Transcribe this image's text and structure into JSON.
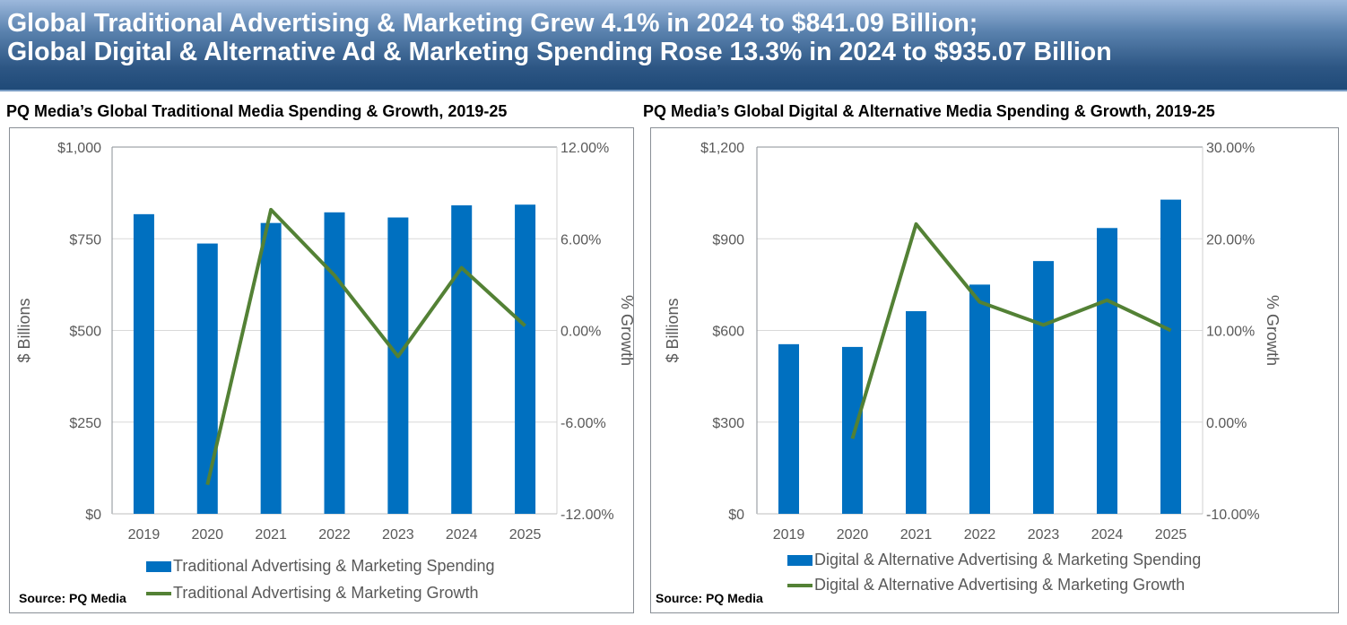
{
  "header": {
    "line1": "Global Traditional Advertising & Marketing Grew 4.1% in 2024 to $841.09 Billion;",
    "line2": "Global Digital & Alternative Ad & Marketing Spending Rose 13.3% in 2024 to $935.07 Billion"
  },
  "colors": {
    "bar": "#0070c0",
    "line": "#538135",
    "header": "#2d5684"
  },
  "chart_data": [
    {
      "type": "bar+line",
      "title": "PQ Media’s Global Traditional Media Spending & Growth, 2019-25",
      "categories": [
        "2019",
        "2020",
        "2021",
        "2022",
        "2023",
        "2024",
        "2025"
      ],
      "ylabel": "$ Billions",
      "y2label": "% Growth",
      "ylim": [
        0,
        1000
      ],
      "y2lim": [
        -12,
        12
      ],
      "yticks": [
        "$0",
        "$250",
        "$500",
        "$750",
        "$1,000"
      ],
      "y2ticks": [
        "-12.00%",
        "-6.00%",
        "0.00%",
        "6.00%",
        "12.00%"
      ],
      "grid": true,
      "legend": "bottom",
      "series": [
        {
          "name": "Traditional Advertising & Marketing Spending",
          "type": "bar",
          "values": [
            817,
            737,
            793,
            822,
            808,
            841.09,
            843
          ]
        },
        {
          "name": "Traditional Advertising & Marketing Growth",
          "type": "line",
          "axis": "right",
          "values": [
            null,
            -10.1,
            7.9,
            3.6,
            -1.7,
            4.1,
            0.3
          ]
        }
      ],
      "source": "Source: PQ Media"
    },
    {
      "type": "bar+line",
      "title": "PQ Media’s Global Digital & Alternative Media Spending & Growth, 2019-25",
      "categories": [
        "2019",
        "2020",
        "2021",
        "2022",
        "2023",
        "2024",
        "2025"
      ],
      "ylabel": "$ Billions",
      "y2label": "% Growth",
      "ylim": [
        0,
        1200
      ],
      "y2lim": [
        -10,
        30
      ],
      "yticks": [
        "$0",
        "$300",
        "$600",
        "$900",
        "$1,200"
      ],
      "y2ticks": [
        "-10.00%",
        "0.00%",
        "10.00%",
        "20.00%",
        "30.00%"
      ],
      "grid": true,
      "legend": "bottom",
      "series": [
        {
          "name": "Digital & Alternative Advertising & Marketing Spending",
          "type": "bar",
          "values": [
            555,
            546,
            663,
            750,
            827,
            935.07,
            1028
          ]
        },
        {
          "name": "Digital & Alternative Advertising & Marketing Growth",
          "type": "line",
          "axis": "right",
          "values": [
            null,
            -1.8,
            21.6,
            13.1,
            10.6,
            13.3,
            10.0
          ]
        }
      ],
      "source": "Source: PQ Media"
    }
  ]
}
